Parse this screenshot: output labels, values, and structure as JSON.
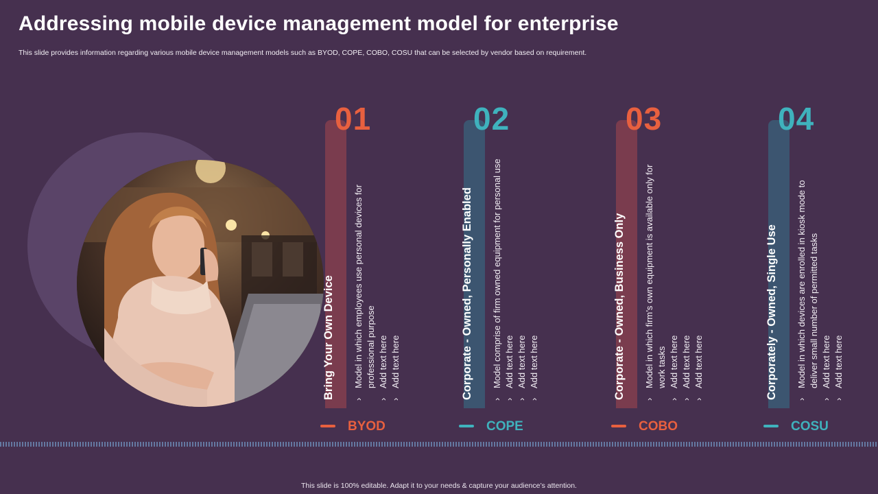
{
  "slide": {
    "title": "Addressing mobile device management model for enterprise",
    "subtitle": "This slide provides information regarding various mobile device management models such as BYOD, COPE, COBO, COSU that can be selected by vendor based on requirement.",
    "footer": "This slide is 100% editable. Adapt it to your needs & capture your audience’s attention."
  },
  "columns": [
    {
      "number": "01",
      "heading": "Bring Your Own Device",
      "items": [
        "Model in which employees use personal devices for professional purpose",
        "Add text here",
        "Add text here"
      ],
      "tag": "BYOD",
      "accent": "#e8603f",
      "bar_color": "#7a3c4e"
    },
    {
      "number": "02",
      "heading": "Corporate - Owned, Personally Enabled",
      "items": [
        "Model comprise of firm owned equipment for personal use",
        "Add text here",
        "Add text here",
        "Add text here"
      ],
      "tag": "COPE",
      "accent": "#3fb2bd",
      "bar_color": "#3c5570"
    },
    {
      "number": "03",
      "heading": "Corporate - Owned, Business Only",
      "items": [
        "Model in which firm’s own equipment is available only for work tasks",
        "Add text here",
        "Add text here",
        "Add text here"
      ],
      "tag": "COBO",
      "accent": "#e8603f",
      "bar_color": "#7a3c4e"
    },
    {
      "number": "04",
      "heading": "Corporately - Owned, Single Use",
      "items": [
        "Model in which devices are enrolled in kiosk mode to deliver small number of permitted tasks",
        "Add text here",
        "Add text here"
      ],
      "tag": "COSU",
      "accent": "#3fb2bd",
      "bar_color": "#3c5570"
    }
  ]
}
